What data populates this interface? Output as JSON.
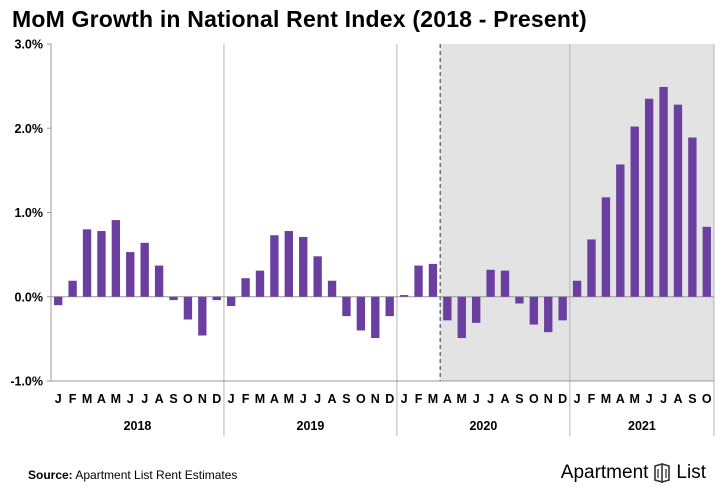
{
  "chart_data": {
    "type": "bar",
    "title": "MoM Growth in National Rent Index (2018 - Present)",
    "xlabel": "",
    "ylabel": "",
    "ylim": [
      -1.0,
      3.0
    ],
    "yticks": [
      "-1.0%",
      "0.0%",
      "1.0%",
      "2.0%",
      "3.0%"
    ],
    "ytick_values": [
      -1.0,
      0.0,
      1.0,
      2.0,
      3.0
    ],
    "grid": false,
    "legend": "none",
    "bar_color": "#6b3fa0",
    "shade_color": "#e3e3e3",
    "shaded_from": "2020-03",
    "dashed_line_at": "2020-03",
    "years": [
      {
        "label": "2018",
        "months": [
          "J",
          "F",
          "M",
          "A",
          "M",
          "J",
          "J",
          "A",
          "S",
          "O",
          "N",
          "D"
        ],
        "values": [
          -0.1,
          0.19,
          0.8,
          0.78,
          0.91,
          0.53,
          0.64,
          0.37,
          -0.04,
          -0.27,
          -0.46,
          -0.04
        ]
      },
      {
        "label": "2019",
        "months": [
          "J",
          "F",
          "M",
          "A",
          "M",
          "J",
          "J",
          "A",
          "S",
          "O",
          "N",
          "D"
        ],
        "values": [
          -0.11,
          0.22,
          0.31,
          0.73,
          0.78,
          0.71,
          0.48,
          0.19,
          -0.23,
          -0.4,
          -0.49,
          -0.23
        ]
      },
      {
        "label": "2020",
        "months": [
          "J",
          "F",
          "M",
          "A",
          "M",
          "J",
          "J",
          "A",
          "S",
          "O",
          "N",
          "D"
        ],
        "values": [
          0.02,
          0.37,
          0.39,
          -0.28,
          -0.49,
          -0.31,
          0.32,
          0.31,
          -0.08,
          -0.33,
          -0.42,
          -0.28
        ]
      },
      {
        "label": "2021",
        "months": [
          "J",
          "F",
          "M",
          "A",
          "M",
          "J",
          "J",
          "A",
          "S",
          "O"
        ],
        "values": [
          0.19,
          0.68,
          1.18,
          1.57,
          2.02,
          2.35,
          2.49,
          2.28,
          1.89,
          0.83
        ]
      }
    ]
  },
  "footer": {
    "source_label": "Source:",
    "source_text": " Apartment List Rent Estimates",
    "brand_left": "Apartment",
    "brand_right": "List"
  }
}
